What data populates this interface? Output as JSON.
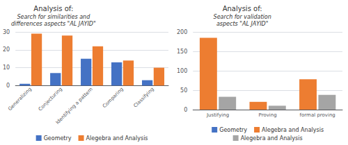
{
  "chart_data": [
    {
      "type": "bar",
      "title": "Analysis of:",
      "subtitle": "Search for similarities and\ndifferences aspects \"AL JAYID\"",
      "categories": [
        "Generalizing",
        "Conjecturing",
        "Identifying a pattern",
        "Comparing",
        "Classifying"
      ],
      "series": [
        {
          "name": "Geometry",
          "color": "#4472c4",
          "values": [
            1,
            7,
            15,
            13,
            3
          ]
        },
        {
          "name": "Alegebra and Analysis",
          "color": "#ed7d31",
          "values": [
            29,
            28,
            22,
            14,
            10
          ]
        }
      ],
      "ylim": [
        0,
        30
      ],
      "yticks": [
        0,
        10,
        20,
        30
      ],
      "grid": true,
      "legend": "bottom"
    },
    {
      "type": "bar",
      "title": "Analysis of:",
      "subtitle": "Search for validation\naspects \"AL JAYID\"",
      "categories": [
        "Justifying",
        "Proving",
        "formal proving"
      ],
      "series": [
        {
          "name": "Geometry",
          "color": "#4472c4",
          "values": [
            null,
            null,
            null
          ]
        },
        {
          "name": "Alegebra and Analysis",
          "color": "#ed7d31",
          "values": [
            185,
            20,
            78
          ]
        },
        {
          "name": "Alegebra and Analysis",
          "color": "#a5a5a5",
          "values": [
            33,
            10,
            38
          ]
        }
      ],
      "ylim": [
        0,
        200
      ],
      "yticks": [
        0,
        50,
        100,
        150,
        200
      ],
      "grid": true,
      "legend": "bottom"
    }
  ]
}
